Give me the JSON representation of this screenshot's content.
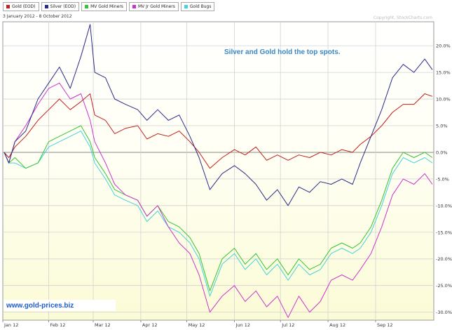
{
  "legend": [
    {
      "label": "Gold (EOD)",
      "color": "#c0201e"
    },
    {
      "label": "Silver (EOD)",
      "color": "#2a2a8a"
    },
    {
      "label": "MV Gold Miners",
      "color": "#35c435"
    },
    {
      "label": "MV Jr Gold Miners",
      "color": "#cc33cc"
    },
    {
      "label": "Gold Bugs",
      "color": "#45d3d8"
    }
  ],
  "date_range": "3 January 2012 - 8 October 2012",
  "copyright": "Copyright, StockCharts.com",
  "annotation": "Silver and Gold hold the top spots.",
  "watermark": "www.gold-prices.biz",
  "chart_data": {
    "type": "line",
    "title": "",
    "xlabel": "",
    "ylabel": "",
    "x_ticks": [
      "Jan 12",
      "Feb 12",
      "Mar 12",
      "Apr 12",
      "May 12",
      "Jun 12",
      "Jul 12",
      "Aug 12",
      "Sep 12"
    ],
    "y_ticks": [
      "20.0%",
      "15.0%",
      "10.0%",
      "5.0%",
      "0.0%",
      "-5.0%",
      "-10.0%",
      "-15.0%",
      "-20.0%",
      "-25.0%",
      "-30.0%"
    ],
    "ylim": [
      -31.5,
      24.5
    ],
    "x_range": [
      "2012-01-03",
      "2012-10-08"
    ],
    "grid": true,
    "legend_position": "top-left",
    "series": [
      {
        "name": "Gold (EOD)",
        "color": "#c0201e",
        "points": [
          [
            "2012-01-03",
            0
          ],
          [
            "2012-01-06",
            -1
          ],
          [
            "2012-01-10",
            1
          ],
          [
            "2012-01-17",
            3
          ],
          [
            "2012-01-25",
            6
          ],
          [
            "2012-02-01",
            8
          ],
          [
            "2012-02-08",
            10
          ],
          [
            "2012-02-15",
            8
          ],
          [
            "2012-02-22",
            9.5
          ],
          [
            "2012-02-28",
            11
          ],
          [
            "2012-03-02",
            7
          ],
          [
            "2012-03-09",
            6
          ],
          [
            "2012-03-15",
            3.5
          ],
          [
            "2012-03-22",
            4.5
          ],
          [
            "2012-03-30",
            5
          ],
          [
            "2012-04-05",
            2.5
          ],
          [
            "2012-04-12",
            3.5
          ],
          [
            "2012-04-19",
            3
          ],
          [
            "2012-04-26",
            4
          ],
          [
            "2012-05-03",
            2
          ],
          [
            "2012-05-09",
            0
          ],
          [
            "2012-05-16",
            -3
          ],
          [
            "2012-05-24",
            -1
          ],
          [
            "2012-06-01",
            0.5
          ],
          [
            "2012-06-08",
            -0.5
          ],
          [
            "2012-06-15",
            1
          ],
          [
            "2012-06-22",
            -1.5
          ],
          [
            "2012-06-29",
            -0.5
          ],
          [
            "2012-07-06",
            -1.5
          ],
          [
            "2012-07-13",
            -0.5
          ],
          [
            "2012-07-20",
            -1
          ],
          [
            "2012-07-27",
            0
          ],
          [
            "2012-08-03",
            -0.5
          ],
          [
            "2012-08-10",
            0.5
          ],
          [
            "2012-08-17",
            0
          ],
          [
            "2012-08-22",
            1.5
          ],
          [
            "2012-08-29",
            3
          ],
          [
            "2012-09-05",
            5
          ],
          [
            "2012-09-12",
            7.5
          ],
          [
            "2012-09-19",
            9
          ],
          [
            "2012-09-26",
            9
          ],
          [
            "2012-10-03",
            11
          ],
          [
            "2012-10-08",
            10.5
          ]
        ]
      },
      {
        "name": "Silver (EOD)",
        "color": "#2a2a8a",
        "points": [
          [
            "2012-01-03",
            0
          ],
          [
            "2012-01-06",
            -2
          ],
          [
            "2012-01-10",
            2
          ],
          [
            "2012-01-17",
            4
          ],
          [
            "2012-01-25",
            10
          ],
          [
            "2012-02-01",
            13
          ],
          [
            "2012-02-08",
            16
          ],
          [
            "2012-02-15",
            12
          ],
          [
            "2012-02-22",
            18
          ],
          [
            "2012-02-28",
            24
          ],
          [
            "2012-03-02",
            15
          ],
          [
            "2012-03-09",
            14
          ],
          [
            "2012-03-15",
            10
          ],
          [
            "2012-03-22",
            9
          ],
          [
            "2012-03-30",
            8
          ],
          [
            "2012-04-05",
            6
          ],
          [
            "2012-04-12",
            8
          ],
          [
            "2012-04-19",
            6
          ],
          [
            "2012-04-26",
            7
          ],
          [
            "2012-05-03",
            3
          ],
          [
            "2012-05-09",
            -1
          ],
          [
            "2012-05-16",
            -7
          ],
          [
            "2012-05-24",
            -4
          ],
          [
            "2012-06-01",
            -2.5
          ],
          [
            "2012-06-08",
            -4
          ],
          [
            "2012-06-15",
            -6
          ],
          [
            "2012-06-22",
            -9
          ],
          [
            "2012-06-29",
            -7
          ],
          [
            "2012-07-06",
            -10
          ],
          [
            "2012-07-13",
            -6.5
          ],
          [
            "2012-07-20",
            -7.5
          ],
          [
            "2012-07-27",
            -5.5
          ],
          [
            "2012-08-03",
            -6
          ],
          [
            "2012-08-10",
            -5
          ],
          [
            "2012-08-17",
            -6
          ],
          [
            "2012-08-22",
            -2
          ],
          [
            "2012-08-29",
            3
          ],
          [
            "2012-09-05",
            8
          ],
          [
            "2012-09-12",
            14
          ],
          [
            "2012-09-19",
            16.5
          ],
          [
            "2012-09-26",
            15
          ],
          [
            "2012-10-03",
            17.5
          ],
          [
            "2012-10-08",
            15.5
          ]
        ]
      },
      {
        "name": "MV Gold Miners",
        "color": "#35c435",
        "points": [
          [
            "2012-01-03",
            0
          ],
          [
            "2012-01-06",
            -2
          ],
          [
            "2012-01-10",
            -1
          ],
          [
            "2012-01-17",
            -3
          ],
          [
            "2012-01-25",
            -2
          ],
          [
            "2012-02-01",
            2
          ],
          [
            "2012-02-08",
            3
          ],
          [
            "2012-02-15",
            4
          ],
          [
            "2012-02-22",
            5
          ],
          [
            "2012-02-28",
            2
          ],
          [
            "2012-03-02",
            -1
          ],
          [
            "2012-03-09",
            -4
          ],
          [
            "2012-03-15",
            -7
          ],
          [
            "2012-03-22",
            -8
          ],
          [
            "2012-03-30",
            -9
          ],
          [
            "2012-04-05",
            -12
          ],
          [
            "2012-04-12",
            -10
          ],
          [
            "2012-04-19",
            -13
          ],
          [
            "2012-04-26",
            -14
          ],
          [
            "2012-05-03",
            -16
          ],
          [
            "2012-05-09",
            -19
          ],
          [
            "2012-05-16",
            -26
          ],
          [
            "2012-05-24",
            -20
          ],
          [
            "2012-06-01",
            -18
          ],
          [
            "2012-06-08",
            -21
          ],
          [
            "2012-06-15",
            -19
          ],
          [
            "2012-06-22",
            -22
          ],
          [
            "2012-06-29",
            -20
          ],
          [
            "2012-07-06",
            -23
          ],
          [
            "2012-07-13",
            -20
          ],
          [
            "2012-07-20",
            -22
          ],
          [
            "2012-07-27",
            -21
          ],
          [
            "2012-08-03",
            -18
          ],
          [
            "2012-08-10",
            -17
          ],
          [
            "2012-08-17",
            -18
          ],
          [
            "2012-08-22",
            -17
          ],
          [
            "2012-08-29",
            -14
          ],
          [
            "2012-09-05",
            -9
          ],
          [
            "2012-09-12",
            -3
          ],
          [
            "2012-09-19",
            0
          ],
          [
            "2012-09-26",
            -1
          ],
          [
            "2012-10-03",
            0
          ],
          [
            "2012-10-08",
            -1
          ]
        ]
      },
      {
        "name": "MV Jr Gold Miners",
        "color": "#cc33cc",
        "points": [
          [
            "2012-01-03",
            0
          ],
          [
            "2012-01-06",
            -2
          ],
          [
            "2012-01-10",
            2
          ],
          [
            "2012-01-17",
            5
          ],
          [
            "2012-01-25",
            9
          ],
          [
            "2012-02-01",
            12
          ],
          [
            "2012-02-08",
            13
          ],
          [
            "2012-02-15",
            10
          ],
          [
            "2012-02-22",
            11
          ],
          [
            "2012-02-28",
            6
          ],
          [
            "2012-03-02",
            2
          ],
          [
            "2012-03-09",
            -2
          ],
          [
            "2012-03-15",
            -6
          ],
          [
            "2012-03-22",
            -8
          ],
          [
            "2012-03-30",
            -9
          ],
          [
            "2012-04-05",
            -12
          ],
          [
            "2012-04-12",
            -10
          ],
          [
            "2012-04-19",
            -14
          ],
          [
            "2012-04-26",
            -17
          ],
          [
            "2012-05-03",
            -19
          ],
          [
            "2012-05-09",
            -23
          ],
          [
            "2012-05-16",
            -30
          ],
          [
            "2012-05-24",
            -27
          ],
          [
            "2012-06-01",
            -25
          ],
          [
            "2012-06-08",
            -28
          ],
          [
            "2012-06-15",
            -26
          ],
          [
            "2012-06-22",
            -29
          ],
          [
            "2012-06-29",
            -27
          ],
          [
            "2012-07-06",
            -31
          ],
          [
            "2012-07-13",
            -27
          ],
          [
            "2012-07-20",
            -30
          ],
          [
            "2012-07-27",
            -28
          ],
          [
            "2012-08-03",
            -24
          ],
          [
            "2012-08-10",
            -23
          ],
          [
            "2012-08-17",
            -24
          ],
          [
            "2012-08-22",
            -22
          ],
          [
            "2012-08-29",
            -19
          ],
          [
            "2012-09-05",
            -14
          ],
          [
            "2012-09-12",
            -8
          ],
          [
            "2012-09-19",
            -5
          ],
          [
            "2012-09-26",
            -6
          ],
          [
            "2012-10-03",
            -4
          ],
          [
            "2012-10-08",
            -6
          ]
        ]
      },
      {
        "name": "Gold Bugs",
        "color": "#45d3d8",
        "points": [
          [
            "2012-01-03",
            0
          ],
          [
            "2012-01-06",
            -2
          ],
          [
            "2012-01-10",
            -2
          ],
          [
            "2012-01-17",
            -3
          ],
          [
            "2012-01-25",
            -2
          ],
          [
            "2012-02-01",
            1
          ],
          [
            "2012-02-08",
            2
          ],
          [
            "2012-02-15",
            3
          ],
          [
            "2012-02-22",
            4
          ],
          [
            "2012-02-28",
            1
          ],
          [
            "2012-03-02",
            -2
          ],
          [
            "2012-03-09",
            -5
          ],
          [
            "2012-03-15",
            -8
          ],
          [
            "2012-03-22",
            -9
          ],
          [
            "2012-03-30",
            -10
          ],
          [
            "2012-04-05",
            -13
          ],
          [
            "2012-04-12",
            -11
          ],
          [
            "2012-04-19",
            -14
          ],
          [
            "2012-04-26",
            -15
          ],
          [
            "2012-05-03",
            -17
          ],
          [
            "2012-05-09",
            -20
          ],
          [
            "2012-05-16",
            -27
          ],
          [
            "2012-05-24",
            -21
          ],
          [
            "2012-06-01",
            -19
          ],
          [
            "2012-06-08",
            -22
          ],
          [
            "2012-06-15",
            -20
          ],
          [
            "2012-06-22",
            -23
          ],
          [
            "2012-06-29",
            -21
          ],
          [
            "2012-07-06",
            -24
          ],
          [
            "2012-07-13",
            -21
          ],
          [
            "2012-07-20",
            -23
          ],
          [
            "2012-07-27",
            -22
          ],
          [
            "2012-08-03",
            -19
          ],
          [
            "2012-08-10",
            -18
          ],
          [
            "2012-08-17",
            -19
          ],
          [
            "2012-08-22",
            -18
          ],
          [
            "2012-08-29",
            -15
          ],
          [
            "2012-09-05",
            -10
          ],
          [
            "2012-09-12",
            -4
          ],
          [
            "2012-09-19",
            -1
          ],
          [
            "2012-09-26",
            -2
          ],
          [
            "2012-10-03",
            -1
          ],
          [
            "2012-10-08",
            -2
          ]
        ]
      }
    ]
  }
}
